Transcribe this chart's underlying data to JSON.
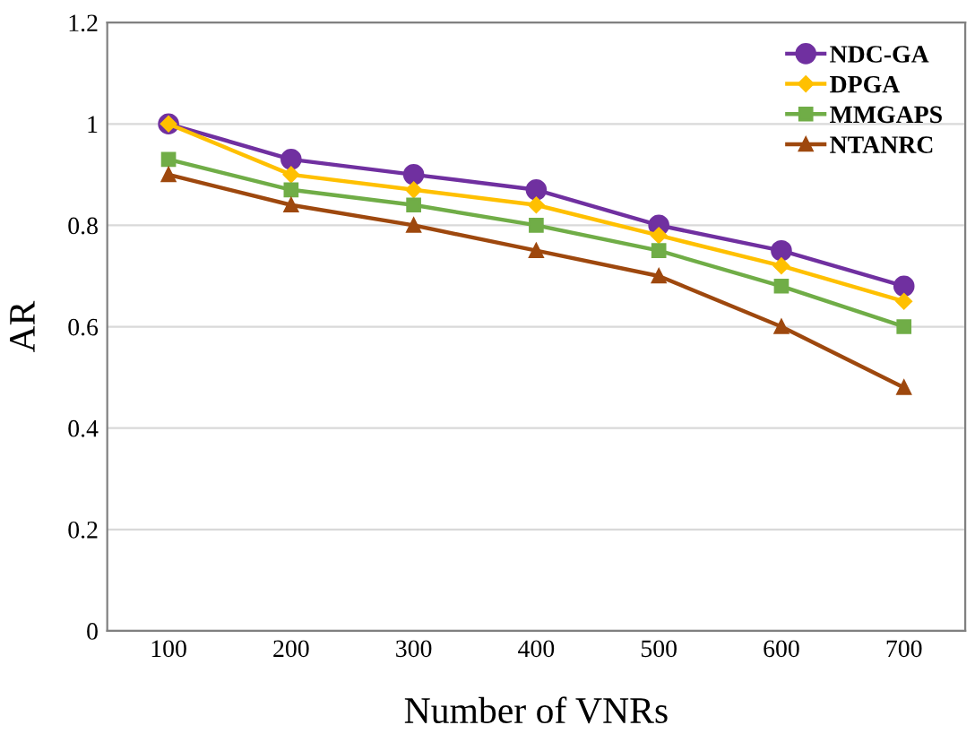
{
  "chart_data": {
    "type": "line",
    "xlabel": "Number of VNRs",
    "ylabel": "AR",
    "categories": [
      "100",
      "200",
      "300",
      "400",
      "500",
      "600",
      "700"
    ],
    "series": [
      {
        "name": "NDC-GA",
        "color": "#7030a0",
        "marker": "circle",
        "values": [
          1,
          0.93,
          0.9,
          0.87,
          0.8,
          0.75,
          0.68
        ]
      },
      {
        "name": "DPGA",
        "color": "#ffc000",
        "marker": "diamond",
        "values": [
          1,
          0.9,
          0.87,
          0.84,
          0.78,
          0.72,
          0.65
        ]
      },
      {
        "name": "MMGAPS",
        "color": "#70ad47",
        "marker": "square",
        "values": [
          0.93,
          0.87,
          0.84,
          0.8,
          0.75,
          0.68,
          0.6
        ]
      },
      {
        "name": "NTANRC",
        "color": "#9e480e",
        "marker": "triangle",
        "values": [
          0.9,
          0.84,
          0.8,
          0.75,
          0.7,
          0.6,
          0.48
        ]
      }
    ],
    "ylim": [
      0,
      1.2
    ],
    "yticks": [
      0,
      0.2,
      0.4,
      0.6,
      0.8,
      1,
      1.2
    ],
    "grid": "y",
    "legend": "top right"
  }
}
